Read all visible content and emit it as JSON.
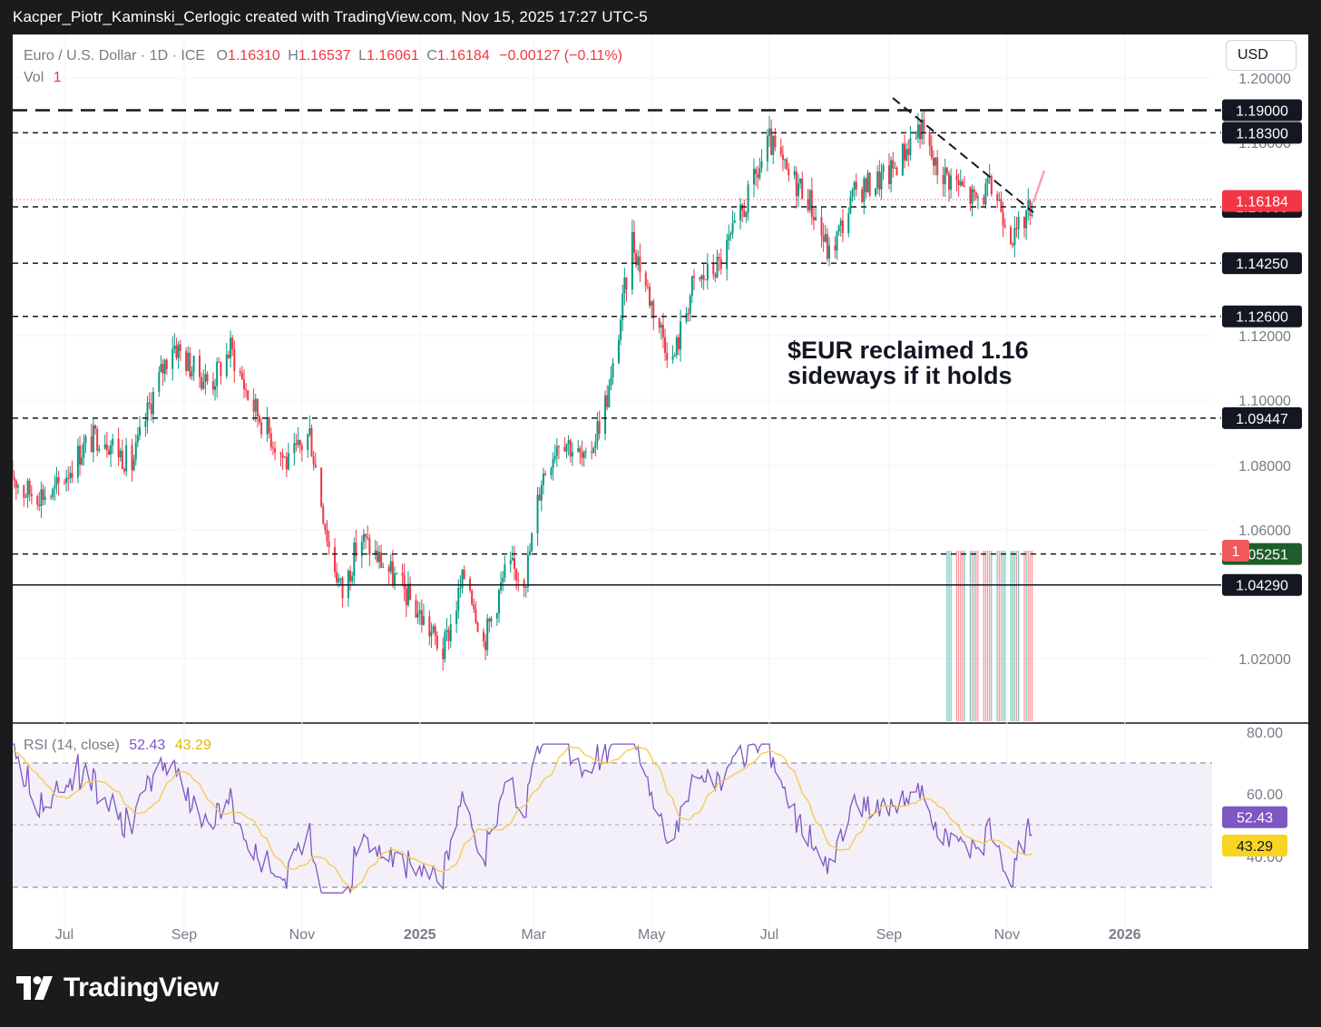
{
  "caption": "Kacper_Piotr_Kaminski_Cerlogic created with TradingView.com, Nov 15, 2025 17:27 UTC-5",
  "legend": {
    "symbol": "Euro / U.S. Dollar · 1D · ICE",
    "o_label": "O",
    "o": "1.16310",
    "h_label": "H",
    "h": "1.16537",
    "l_label": "L",
    "l": "1.16061",
    "c_label": "C",
    "c": "1.16184",
    "change": "−0.00127 (−0.11%)",
    "vol_label": "Vol",
    "vol": "1"
  },
  "currency_button": "USD",
  "annotation": {
    "line1": "$EUR reclaimed 1.16",
    "line2": "sideways if it holds"
  },
  "rsi_legend": {
    "label": "RSI (14, close)",
    "rsi": "52.43",
    "ma": "43.29"
  },
  "brand": "TradingView",
  "colors": {
    "up": "#089981",
    "down": "#f23645",
    "rsi": "#7e57c2",
    "rsi_ma": "#f7c948",
    "last_price": "#f23645"
  },
  "chart_data": {
    "type": "candlestick",
    "price_axis": {
      "ticks": [
        1.02,
        1.06,
        1.08,
        1.1,
        1.12,
        1.18,
        1.2
      ],
      "range": [
        1.0,
        1.2
      ]
    },
    "time_axis": [
      "Jul",
      "Sep",
      "Nov",
      "2025",
      "Mar",
      "May",
      "Jul",
      "Sep",
      "Nov",
      "2026"
    ],
    "price_path": [
      [
        "2024-06-01",
        1.08
      ],
      [
        "2024-06-10",
        1.072
      ],
      [
        "2024-06-25",
        1.071
      ],
      [
        "2024-07-10",
        1.085
      ],
      [
        "2024-07-20",
        1.09
      ],
      [
        "2024-08-05",
        1.08
      ],
      [
        "2024-08-15",
        1.1
      ],
      [
        "2024-08-26",
        1.118
      ],
      [
        "2024-09-05",
        1.11
      ],
      [
        "2024-09-15",
        1.105
      ],
      [
        "2024-09-25",
        1.116
      ],
      [
        "2024-10-05",
        1.1
      ],
      [
        "2024-10-15",
        1.09
      ],
      [
        "2024-10-25",
        1.08
      ],
      [
        "2024-11-05",
        1.09
      ],
      [
        "2024-11-15",
        1.055
      ],
      [
        "2024-11-22",
        1.04
      ],
      [
        "2024-12-01",
        1.058
      ],
      [
        "2024-12-15",
        1.048
      ],
      [
        "2024-12-25",
        1.04
      ],
      [
        "2025-01-05",
        1.03
      ],
      [
        "2025-01-13",
        1.022
      ],
      [
        "2025-01-25",
        1.048
      ],
      [
        "2025-02-03",
        1.025
      ],
      [
        "2025-02-15",
        1.048
      ],
      [
        "2025-02-25",
        1.046
      ],
      [
        "2025-03-05",
        1.076
      ],
      [
        "2025-03-15",
        1.09
      ],
      [
        "2025-03-28",
        1.08
      ],
      [
        "2025-04-10",
        1.105
      ],
      [
        "2025-04-21",
        1.15
      ],
      [
        "2025-05-01",
        1.13
      ],
      [
        "2025-05-12",
        1.112
      ],
      [
        "2025-05-22",
        1.135
      ],
      [
        "2025-06-05",
        1.142
      ],
      [
        "2025-06-15",
        1.155
      ],
      [
        "2025-07-01",
        1.18
      ],
      [
        "2025-07-10",
        1.17
      ],
      [
        "2025-07-20",
        1.165
      ],
      [
        "2025-08-01",
        1.145
      ],
      [
        "2025-08-15",
        1.165
      ],
      [
        "2025-09-01",
        1.17
      ],
      [
        "2025-09-17",
        1.185
      ],
      [
        "2025-09-25",
        1.172
      ],
      [
        "2025-10-05",
        1.168
      ],
      [
        "2025-10-15",
        1.162
      ],
      [
        "2025-10-25",
        1.166
      ],
      [
        "2025-11-05",
        1.15
      ],
      [
        "2025-11-14",
        1.16184
      ]
    ],
    "horizontal_levels": [
      {
        "value": "1.19000",
        "style": "dashed-long"
      },
      {
        "value": "1.18300",
        "style": "dashed"
      },
      {
        "value": "1.16000",
        "style": "dashed"
      },
      {
        "value": "1.14250",
        "style": "dashed"
      },
      {
        "value": "1.12600",
        "style": "dashed"
      },
      {
        "value": "1.09447",
        "style": "dashed"
      },
      {
        "value": "1.05251",
        "style": "dashed"
      },
      {
        "value": "1.04290",
        "style": "solid"
      }
    ],
    "last_price": "1.16184",
    "volume_last": "1",
    "rsi": {
      "axis_ticks": [
        "80.00",
        "60.00",
        "40.00"
      ],
      "upper_band": 70,
      "middle": 50,
      "lower_band": 30,
      "last_value": "52.43",
      "ma_value": "43.29"
    }
  }
}
